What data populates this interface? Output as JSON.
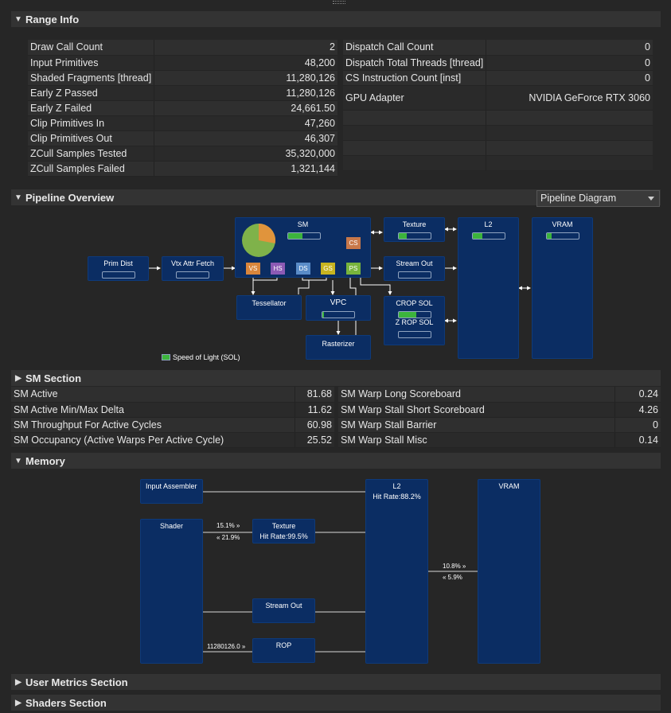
{
  "sections": {
    "range_info": "Range Info",
    "pipeline_overview": "Pipeline Overview",
    "sm_section": "SM Section",
    "memory": "Memory",
    "user_metrics": "User Metrics Section",
    "shaders": "Shaders Section"
  },
  "range_info": {
    "left": [
      {
        "label": "Draw Call Count",
        "value": "2"
      },
      {
        "label": "Input Primitives",
        "value": "48,200"
      },
      {
        "label": "Shaded Fragments [thread]",
        "value": "11,280,126"
      },
      {
        "label": "Early Z Passed",
        "value": "11,280,126"
      },
      {
        "label": "Early Z Failed",
        "value": "24,661.50"
      },
      {
        "label": "Clip Primitives In",
        "value": "47,260"
      },
      {
        "label": "Clip Primitives Out",
        "value": "46,307"
      },
      {
        "label": "ZCull Samples Tested",
        "value": "35,320,000"
      },
      {
        "label": "ZCull Samples Failed",
        "value": "1,321,144"
      }
    ],
    "right": [
      {
        "label": "Dispatch Call Count",
        "value": "0"
      },
      {
        "label": "Dispatch Total Threads [thread]",
        "value": "0"
      },
      {
        "label": "CS Instruction Count [inst]",
        "value": "0"
      },
      {
        "label": "GPU Adapter",
        "value": "NVIDIA GeForce RTX 3060"
      }
    ]
  },
  "pipeline": {
    "view_select": "Pipeline Diagram",
    "prim_dist": "Prim Dist",
    "vtx_attr_fetch": "Vtx Attr Fetch",
    "sm": "SM",
    "texture": "Texture",
    "l2": "L2",
    "vram": "VRAM",
    "stream_out": "Stream Out",
    "tessellator": "Tessellator",
    "vpc": "VPC",
    "rasterizer": "Rasterizer",
    "crop_sol": "CROP SOL",
    "zrop_sol": "Z ROP SOL",
    "stages": {
      "vs": "VS",
      "hs": "HS",
      "ds": "DS",
      "gs": "GS",
      "ps": "PS",
      "cs": "CS"
    },
    "legend": "Speed of Light (SOL)",
    "levels": {
      "sm": 0.45,
      "texture": 0.25,
      "l2": 0.3,
      "vram": 0.15,
      "crop": 0.55,
      "vpc": 0.05,
      "pie_fraction": 0.72
    },
    "colors": {
      "box": "#0b2d63",
      "bar_fill": "#3cb43c",
      "pie_main": "#7fb24a",
      "pie_slice": "#e0943c",
      "vs": "#d9863c",
      "hs": "#8c5ab4",
      "ds": "#5a8cc8",
      "gs": "#c8b420",
      "ps": "#78b43c",
      "cs": "#c8784a"
    }
  },
  "sm_section": {
    "left": [
      {
        "label": "SM Active",
        "value": "81.68"
      },
      {
        "label": "SM Active Min/Max Delta",
        "value": "11.62"
      },
      {
        "label": "SM Throughput For Active Cycles",
        "value": "60.98"
      },
      {
        "label": "SM Occupancy (Active Warps Per Active Cycle)",
        "value": "25.52"
      }
    ],
    "right": [
      {
        "label": "SM Warp Long Scoreboard",
        "value": "0.24"
      },
      {
        "label": "SM Warp Stall Short Scoreboard",
        "value": "4.26"
      },
      {
        "label": "SM Warp Stall Barrier",
        "value": "0"
      },
      {
        "label": "SM Warp Stall Misc",
        "value": "0.14"
      }
    ]
  },
  "memory": {
    "input_assembler": "Input Assembler",
    "shader": "Shader",
    "texture": "Texture",
    "texture_hit": "Hit Rate:99.5%",
    "stream_out": "Stream Out",
    "rop": "ROP",
    "l2": "L2",
    "l2_hit": "Hit Rate:88.2%",
    "vram": "VRAM",
    "shader_tex_out": "15.1% »",
    "shader_tex_in": "« 21.9%",
    "l2_vram_out": "10.8% »",
    "l2_vram_in": "« 5.9%",
    "rop_in": "11280126.0 »"
  }
}
